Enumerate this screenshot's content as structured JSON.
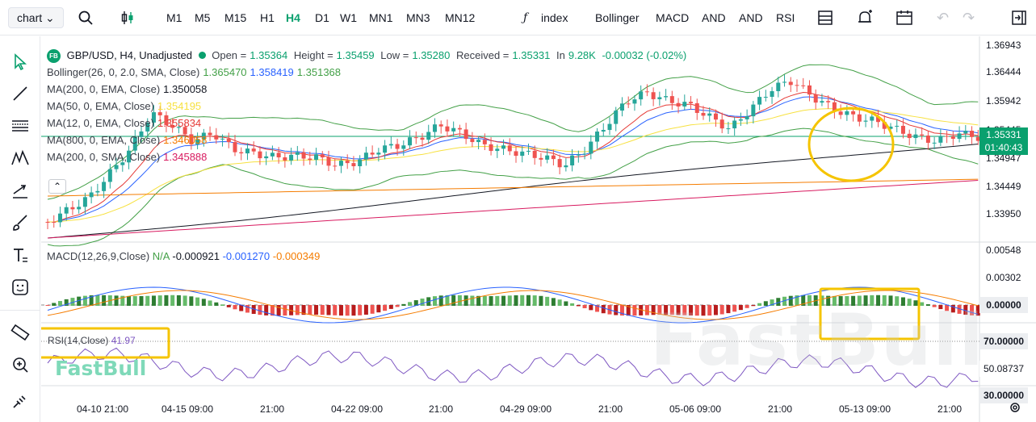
{
  "toolbar": {
    "chart_select": "chart",
    "timeframes": [
      "M1",
      "M5",
      "M15",
      "H1",
      "H4",
      "D1",
      "W1",
      "MN1",
      "MN3",
      "MN12"
    ],
    "active_timeframe": "H4",
    "indicator_btn": "index",
    "studies": [
      "Bollinger",
      "MACD",
      "AND",
      "AND",
      "RSI"
    ]
  },
  "legend": {
    "symbol_logo": "FB",
    "title": "GBP/USD, H4, Unadjusted",
    "open_label": "Open =",
    "open": "1.35364",
    "high_label": "Height =",
    "high": "1.35459",
    "low_label": "Low =",
    "low": "1.35280",
    "close_label": "Received =",
    "close": "1.35331",
    "vol_label": "In",
    "vol": "9.28K",
    "change": "-0.00032 (-0.02%)",
    "rows": [
      {
        "label": "Bollinger(26, 0, 2.0, SMA, Close)",
        "values": [
          {
            "v": "1.365470",
            "c": "#43a047"
          },
          {
            "v": "1.358419",
            "c": "#2962ff"
          },
          {
            "v": "1.351368",
            "c": "#43a047"
          }
        ]
      },
      {
        "label": "MA(200, 0, EMA, Close)",
        "values": [
          {
            "v": "1.350058",
            "c": "#131722"
          }
        ]
      },
      {
        "label": "MA(50, 0, EMA, Close)",
        "values": [
          {
            "v": "1.354195",
            "c": "#f7e140"
          }
        ]
      },
      {
        "label": "MA(12, 0, EMA, Close)",
        "values": [
          {
            "v": "1.355834",
            "c": "#e53935"
          }
        ]
      },
      {
        "label": "MA(800, 0, EMA, Close)",
        "values": [
          {
            "v": "1.346058",
            "c": "#f57c00"
          }
        ]
      },
      {
        "label": "MA(200, 0, SMA, Close)",
        "values": [
          {
            "v": "1.345888",
            "c": "#d81b60"
          }
        ]
      }
    ],
    "macd_label": "MACD(12,26,9,Close)",
    "macd_vals": [
      {
        "v": "N/A",
        "c": "#43a047"
      },
      {
        "v": "-0.000921",
        "c": "#131722"
      },
      {
        "v": "-0.001270",
        "c": "#2962ff"
      },
      {
        "v": "-0.000349",
        "c": "#f57c00"
      }
    ],
    "rsi_label": "RSI(14,Close)",
    "rsi_val": "41.97"
  },
  "price_axis": [
    "1.36943",
    "1.36444",
    "1.35942",
    "1.35445",
    "1.34947",
    "1.34449",
    "1.33950"
  ],
  "current_price": "1.35331",
  "countdown": "01:40:43",
  "macd_axis": [
    "0.00548",
    "0.00302",
    "0.00000"
  ],
  "rsi_axis": [
    "70.00000",
    "50.08737",
    "30.00000"
  ],
  "time_axis": [
    "04-10 21:00",
    "04-15 09:00",
    "21:00",
    "04-22 09:00",
    "21:00",
    "04-29 09:00",
    "21:00",
    "05-06 09:00",
    "21:00",
    "05-13 09:00",
    "21:00"
  ],
  "watermark": "FastBull",
  "brand": "FastBull",
  "colors": {
    "up": "#26a69a",
    "down": "#ef5350",
    "accent": "#0aa06e",
    "highlight": "#f5c400"
  }
}
